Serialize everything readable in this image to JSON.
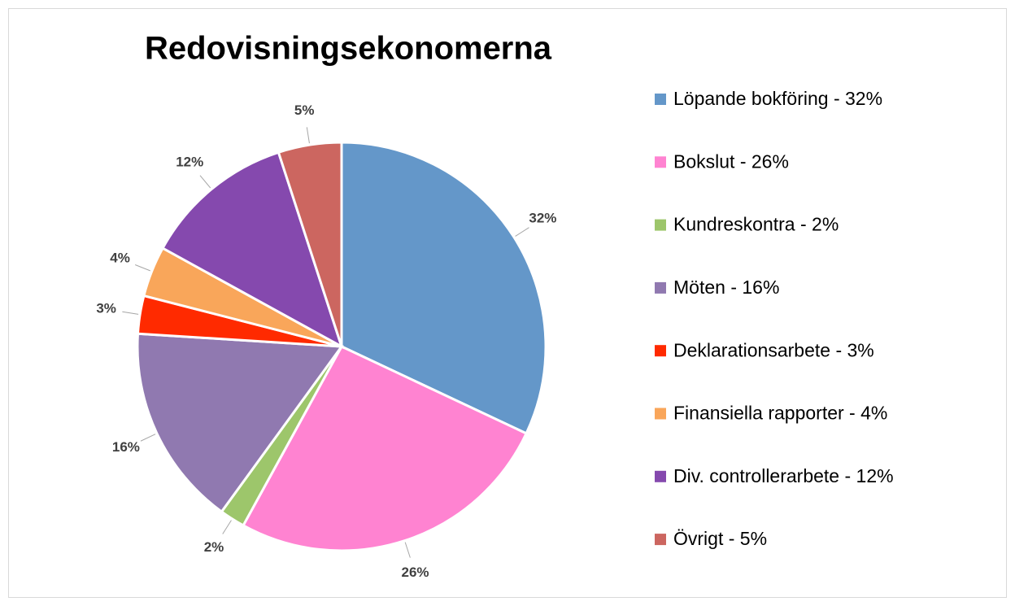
{
  "chart_data": {
    "type": "pie",
    "title": "Redovisningsekonomerna",
    "categories": [
      "Löpande bokföring - 32%",
      "Bokslut - 26%",
      "Kundreskontra - 2%",
      "Möten - 16%",
      "Deklarationsarbete - 3%",
      "Finansiella rapporter - 4%",
      "Div. controllerarbete - 12%",
      "Övrigt - 5%"
    ],
    "values": [
      32,
      26,
      2,
      16,
      3,
      4,
      12,
      5
    ],
    "value_labels": [
      "32%",
      "26%",
      "2%",
      "16%",
      "3%",
      "4%",
      "12%",
      "5%"
    ],
    "colors": [
      "#6497c9",
      "#ff83d1",
      "#9dc66b",
      "#9079b0",
      "#ff2a00",
      "#f9a65a",
      "#8549ae",
      "#cc6660"
    ],
    "legend": "right"
  }
}
